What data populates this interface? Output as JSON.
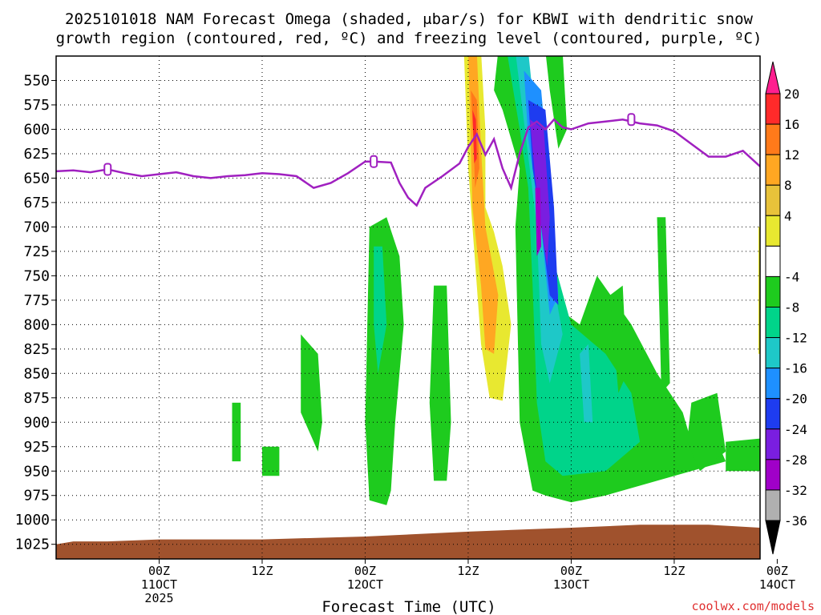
{
  "chart_data": {
    "type": "heatmap",
    "title_line1": "2025101018 NAM Forecast Omega (shaded, μbar/s) for KBWI with dendritic snow",
    "title_line2": "growth region (contoured, red, ºC) and freezing level (contoured, purple, ºC)",
    "xlabel": "Forecast Time (UTC)",
    "credit": "coolwx.com/models",
    "y_ticks": [
      550,
      575,
      600,
      625,
      650,
      675,
      700,
      725,
      750,
      775,
      800,
      825,
      850,
      875,
      900,
      925,
      950,
      975,
      1000,
      1025
    ],
    "y_range_hpa": [
      525,
      1040
    ],
    "x_range_hours_after_00z_11oct": [
      -12,
      70
    ],
    "x_ticks": [
      {
        "hour": 0,
        "lines": [
          "00Z",
          "11OCT",
          "2025"
        ]
      },
      {
        "hour": 12,
        "lines": [
          "12Z"
        ]
      },
      {
        "hour": 24,
        "lines": [
          "00Z",
          "12OCT"
        ]
      },
      {
        "hour": 36,
        "lines": [
          "12Z"
        ]
      },
      {
        "hour": 48,
        "lines": [
          "00Z",
          "13OCT"
        ]
      },
      {
        "hour": 60,
        "lines": [
          "12Z"
        ]
      },
      {
        "hour": 72,
        "lines": [
          "00Z",
          "14OCT"
        ]
      }
    ],
    "colorbar": {
      "labels": [
        "20",
        "16",
        "12",
        "8",
        "4",
        "-4",
        "-8",
        "-12",
        "-16",
        "-20",
        "-24",
        "-28",
        "-32",
        "-36"
      ],
      "colors": [
        "#ff1f8f",
        "#ff2a2a",
        "#ff7a1a",
        "#ffa722",
        "#e8c23a",
        "#e8e830",
        "#ffffff",
        "#1ecb1e",
        "#00d48a",
        "#1ec8c8",
        "#1e90ff",
        "#1e3cf0",
        "#7a1ee0",
        "#a000c8",
        "#b0b0b0",
        "#000000"
      ]
    },
    "freezing_level_hpa": [
      [
        -12,
        643
      ],
      [
        -10,
        642
      ],
      [
        -8,
        644
      ],
      [
        -6,
        641
      ],
      [
        -4,
        645
      ],
      [
        -2,
        648
      ],
      [
        0,
        646
      ],
      [
        2,
        644
      ],
      [
        4,
        648
      ],
      [
        6,
        650
      ],
      [
        8,
        648
      ],
      [
        10,
        647
      ],
      [
        12,
        645
      ],
      [
        14,
        646
      ],
      [
        16,
        648
      ],
      [
        18,
        660
      ],
      [
        20,
        655
      ],
      [
        22,
        645
      ],
      [
        24,
        633
      ],
      [
        25,
        633
      ],
      [
        27,
        634
      ],
      [
        28,
        655
      ],
      [
        29,
        670
      ],
      [
        30,
        678
      ],
      [
        31,
        660
      ],
      [
        33,
        648
      ],
      [
        35,
        635
      ],
      [
        36,
        618
      ],
      [
        37,
        605
      ],
      [
        38,
        626
      ],
      [
        39,
        610
      ],
      [
        40,
        640
      ],
      [
        41,
        660
      ],
      [
        42,
        625
      ],
      [
        43,
        598
      ],
      [
        44,
        592
      ],
      [
        45,
        600
      ],
      [
        46,
        590
      ],
      [
        47,
        598
      ],
      [
        48,
        600
      ],
      [
        50,
        594
      ],
      [
        52,
        592
      ],
      [
        54,
        590
      ],
      [
        56,
        594
      ],
      [
        58,
        596
      ],
      [
        60,
        602
      ],
      [
        62,
        615
      ],
      [
        64,
        628
      ],
      [
        66,
        628
      ],
      [
        68,
        622
      ],
      [
        70,
        638
      ]
    ],
    "contour_labels": [
      {
        "hour": -6,
        "hpa": 641,
        "text": "0"
      },
      {
        "hour": 25,
        "hpa": 633,
        "text": "0"
      },
      {
        "hour": 55,
        "hpa": 590,
        "text": "0"
      }
    ],
    "regions": [
      {
        "value": 6,
        "pts": [
          [
            35.5,
            520
          ],
          [
            37.5,
            520
          ],
          [
            38,
            600
          ],
          [
            38,
            680
          ],
          [
            39,
            705
          ],
          [
            40,
            740
          ],
          [
            41,
            800
          ],
          [
            40,
            878
          ],
          [
            38.5,
            875
          ],
          [
            37.5,
            820
          ],
          [
            37,
            760
          ],
          [
            36.5,
            700
          ],
          [
            36,
            640
          ]
        ]
      },
      {
        "value": 10,
        "pts": [
          [
            36,
            520
          ],
          [
            37,
            520
          ],
          [
            37.5,
            620
          ],
          [
            38,
            700
          ],
          [
            39.5,
            770
          ],
          [
            39,
            830
          ],
          [
            38,
            825
          ],
          [
            37.5,
            760
          ],
          [
            36.5,
            680
          ]
        ]
      },
      {
        "value": 14,
        "pts": [
          [
            36.3,
            560
          ],
          [
            37,
            570
          ],
          [
            37.3,
            640
          ],
          [
            36.8,
            660
          ],
          [
            36.6,
            610
          ]
        ]
      },
      {
        "value": 18,
        "pts": [
          [
            36.5,
            580
          ],
          [
            36.9,
            590
          ],
          [
            37,
            630
          ],
          [
            36.7,
            635
          ]
        ]
      },
      {
        "value": 6,
        "pts": [
          [
            42.5,
            745
          ],
          [
            43.5,
            750
          ],
          [
            43.7,
            850
          ],
          [
            43.3,
            908
          ],
          [
            42.5,
            850
          ]
        ]
      },
      {
        "value": -6,
        "pts": [
          [
            39.5,
            520
          ],
          [
            42.5,
            520
          ],
          [
            44,
            600
          ],
          [
            44.5,
            700
          ],
          [
            46,
            780
          ],
          [
            49,
            800
          ],
          [
            51,
            750
          ],
          [
            55,
            800
          ],
          [
            58,
            850
          ],
          [
            61,
            890
          ],
          [
            62,
            920
          ],
          [
            65,
            920
          ],
          [
            66,
            940
          ],
          [
            58,
            960
          ],
          [
            52,
            975
          ],
          [
            48,
            982
          ],
          [
            45,
            975
          ],
          [
            43.5,
            970
          ],
          [
            42,
            900
          ],
          [
            41.5,
            700
          ],
          [
            42,
            640
          ],
          [
            40,
            580
          ],
          [
            39,
            560
          ]
        ]
      },
      {
        "value": -10,
        "pts": [
          [
            40.5,
            520
          ],
          [
            42.5,
            520
          ],
          [
            44,
            620
          ],
          [
            45.5,
            720
          ],
          [
            48,
            800
          ],
          [
            52,
            830
          ],
          [
            55,
            870
          ],
          [
            56,
            920
          ],
          [
            52,
            950
          ],
          [
            47,
            955
          ],
          [
            45,
            940
          ],
          [
            44,
            880
          ],
          [
            43.5,
            760
          ],
          [
            43,
            660
          ],
          [
            42,
            600
          ]
        ]
      },
      {
        "value": -14,
        "pts": [
          [
            41.5,
            520
          ],
          [
            43,
            520
          ],
          [
            44.5,
            650
          ],
          [
            46,
            760
          ],
          [
            47,
            810
          ],
          [
            45.5,
            860
          ],
          [
            44.5,
            820
          ],
          [
            44,
            700
          ]
        ]
      },
      {
        "value": -18,
        "pts": [
          [
            42.5,
            540
          ],
          [
            44.5,
            560
          ],
          [
            45.5,
            660
          ],
          [
            46.5,
            770
          ],
          [
            45.5,
            790
          ],
          [
            44.5,
            700
          ],
          [
            43,
            610
          ]
        ]
      },
      {
        "value": -22,
        "pts": [
          [
            43,
            570
          ],
          [
            45,
            580
          ],
          [
            46,
            680
          ],
          [
            46.5,
            780
          ],
          [
            45.5,
            770
          ],
          [
            44.5,
            700
          ],
          [
            43.5,
            640
          ]
        ]
      },
      {
        "value": -26,
        "pts": [
          [
            43.2,
            590
          ],
          [
            44.8,
            600
          ],
          [
            45.5,
            690
          ],
          [
            45.2,
            740
          ],
          [
            44.5,
            700
          ],
          [
            43.8,
            650
          ]
        ]
      },
      {
        "value": -30,
        "pts": [
          [
            43.8,
            660
          ],
          [
            44.4,
            660
          ],
          [
            44.5,
            720
          ],
          [
            44,
            730
          ]
        ]
      },
      {
        "value": -14,
        "pts": [
          [
            49,
            830
          ],
          [
            50,
            820
          ],
          [
            50.5,
            900
          ],
          [
            49.5,
            900
          ]
        ]
      },
      {
        "value": -6,
        "pts": [
          [
            24.5,
            700
          ],
          [
            26.5,
            690
          ],
          [
            28,
            730
          ],
          [
            28.5,
            800
          ],
          [
            27.5,
            900
          ],
          [
            27,
            970
          ],
          [
            26.5,
            985
          ],
          [
            24.5,
            980
          ],
          [
            24,
            900
          ]
        ]
      },
      {
        "value": -10,
        "pts": [
          [
            25,
            720
          ],
          [
            26,
            720
          ],
          [
            26.5,
            800
          ],
          [
            25.5,
            850
          ],
          [
            25,
            800
          ]
        ]
      },
      {
        "value": -6,
        "pts": [
          [
            32,
            760
          ],
          [
            33.5,
            760
          ],
          [
            34,
            900
          ],
          [
            33.5,
            960
          ],
          [
            32,
            960
          ],
          [
            31.5,
            880
          ]
        ]
      },
      {
        "value": -6,
        "pts": [
          [
            16.5,
            810
          ],
          [
            18.5,
            830
          ],
          [
            19,
            900
          ],
          [
            18.5,
            930
          ],
          [
            16.5,
            890
          ]
        ]
      },
      {
        "value": -6,
        "pts": [
          [
            52.5,
            770
          ],
          [
            54,
            760
          ],
          [
            54.5,
            850
          ],
          [
            53.5,
            870
          ]
        ]
      },
      {
        "value": -6,
        "pts": [
          [
            58,
            690
          ],
          [
            59,
            690
          ],
          [
            59.5,
            860
          ],
          [
            58.5,
            870
          ]
        ]
      },
      {
        "value": -6,
        "pts": [
          [
            62,
            880
          ],
          [
            65,
            870
          ],
          [
            66,
            930
          ],
          [
            63,
            950
          ],
          [
            61.5,
            920
          ]
        ]
      },
      {
        "value": -6,
        "pts": [
          [
            66,
            920
          ],
          [
            72,
            915
          ],
          [
            73,
            950
          ],
          [
            66,
            950
          ]
        ]
      },
      {
        "value": -6,
        "pts": [
          [
            8.5,
            880
          ],
          [
            9.5,
            880
          ],
          [
            9.5,
            940
          ],
          [
            8.5,
            940
          ]
        ]
      },
      {
        "value": -6,
        "pts": [
          [
            12,
            925
          ],
          [
            14,
            925
          ],
          [
            14,
            955
          ],
          [
            12,
            955
          ]
        ]
      },
      {
        "value": -6,
        "pts": [
          [
            45,
            520
          ],
          [
            47,
            520
          ],
          [
            47.5,
            600
          ],
          [
            46.5,
            620
          ],
          [
            45.5,
            560
          ]
        ]
      },
      {
        "value": 6,
        "pts": [
          [
            69.8,
            700
          ],
          [
            70,
            700
          ],
          [
            70,
            830
          ],
          [
            69.8,
            830
          ]
        ]
      }
    ],
    "terrain_top_hpa": [
      [
        -12,
        1025
      ],
      [
        -10,
        1022
      ],
      [
        -6,
        1022
      ],
      [
        0,
        1020
      ],
      [
        12,
        1020
      ],
      [
        24,
        1017
      ],
      [
        36,
        1012
      ],
      [
        42,
        1010
      ],
      [
        48,
        1008
      ],
      [
        56,
        1005
      ],
      [
        64,
        1005
      ],
      [
        70,
        1008
      ]
    ]
  }
}
